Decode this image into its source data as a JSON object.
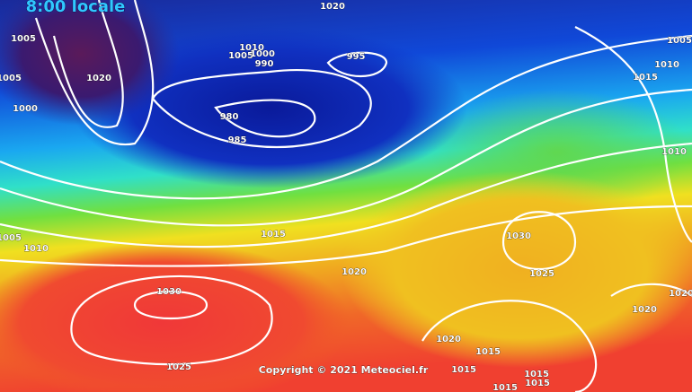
{
  "header": {
    "time": "8:00 locale"
  },
  "isobar_labels": [
    "1020",
    "1005",
    "1005",
    "1000",
    "1020",
    "1010",
    "1005",
    "1000",
    "990",
    "995",
    "980",
    "985",
    "1005",
    "1010",
    "1015",
    "1010",
    "1005",
    "1010",
    "1015",
    "1020",
    "1030",
    "1025",
    "1030",
    "1025",
    "1020",
    "1020",
    "1020",
    "1015",
    "1015",
    "1015",
    "1015",
    "1015"
  ],
  "copyright": "Copyright © 2021 Meteociel.fr"
}
